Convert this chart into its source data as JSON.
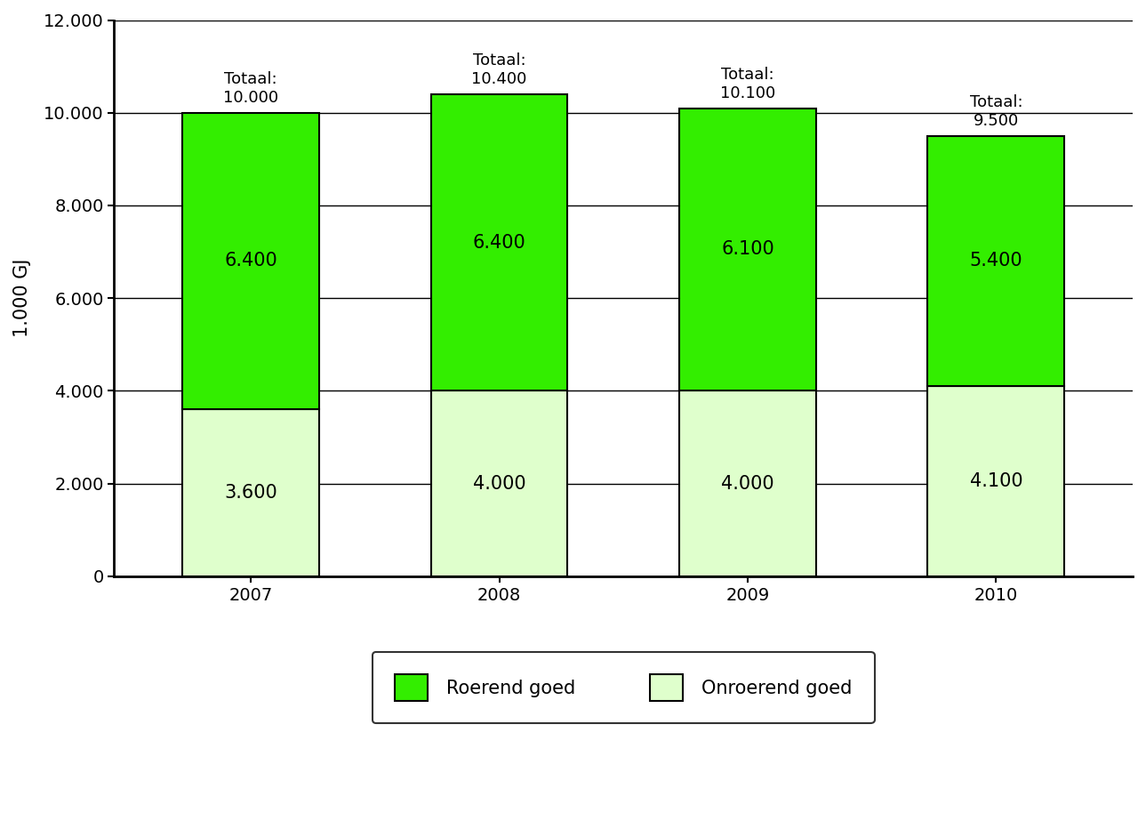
{
  "years": [
    "2007",
    "2008",
    "2009",
    "2010"
  ],
  "roerend": [
    6400,
    6400,
    6100,
    5400
  ],
  "onroerend": [
    3600,
    4000,
    4000,
    4100
  ],
  "totals_str": [
    "Totaal:\n10.000",
    "Totaal:\n10.400",
    "Totaal:\n10.100",
    "Totaal:\n9.500"
  ],
  "totals_val": [
    10000,
    10400,
    10100,
    9500
  ],
  "roerend_labels": [
    "6.400",
    "6.400",
    "6.100",
    "5.400"
  ],
  "onroerend_labels": [
    "3.600",
    "4.000",
    "4.000",
    "4.100"
  ],
  "color_roerend": "#33ee00",
  "color_onroerend": "#dfffcc",
  "ylabel": "1.000 GJ",
  "ylim": [
    0,
    12000
  ],
  "yticks": [
    0,
    2000,
    4000,
    6000,
    8000,
    10000,
    12000
  ],
  "ytick_labels": [
    "0",
    "2.000",
    "4.000",
    "6.000",
    "8.000",
    "10.000",
    "12.000"
  ],
  "legend_roerend": "Roerend goed",
  "legend_onroerend": "Onroerend goed",
  "bar_width": 0.55,
  "background_color": "#ffffff",
  "label_fontsize": 15,
  "tick_fontsize": 14,
  "ylabel_fontsize": 15,
  "totaal_fontsize": 13,
  "spine_linewidth": 2.0,
  "grid_linewidth": 1.0
}
